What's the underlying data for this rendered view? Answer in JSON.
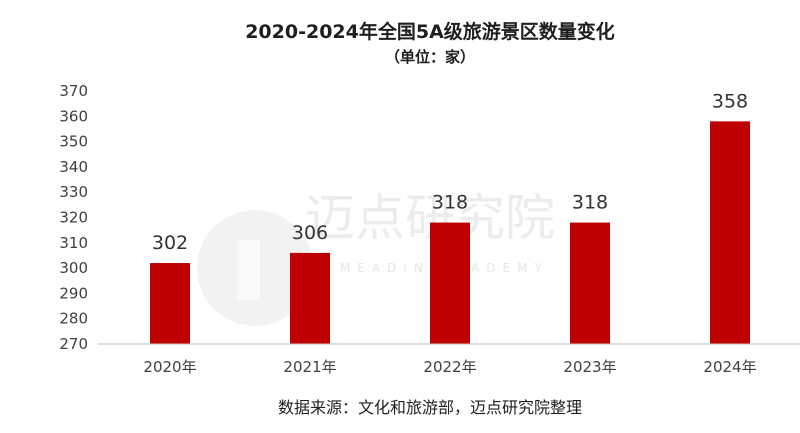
{
  "title": "2020-2024年全国5A级旅游景区数量变化",
  "subtitle": "（单位：家）",
  "source": "数据来源：文化和旅游部，迈点研究院整理",
  "watermark": {
    "name": "迈点研究院",
    "sub": "MEADIN ACADEMY"
  },
  "colors": {
    "bar": "#c00000",
    "axis": "#bfbfbf"
  },
  "chart_data": {
    "type": "bar",
    "title": "2020-2024年全国5A级旅游景区数量变化",
    "subtitle": "（单位：家）",
    "categories": [
      "2020年",
      "2021年",
      "2022年",
      "2023年",
      "2024年"
    ],
    "values": [
      302,
      306,
      318,
      318,
      358
    ],
    "data_labels": [
      "302",
      "306",
      "318",
      "318",
      "358"
    ],
    "yticks": [
      "270",
      "280",
      "290",
      "300",
      "310",
      "320",
      "330",
      "340",
      "350",
      "360",
      "370"
    ],
    "ylim": [
      270,
      370
    ],
    "xlabel": "",
    "ylabel": "",
    "grid": false,
    "legend": "none"
  }
}
